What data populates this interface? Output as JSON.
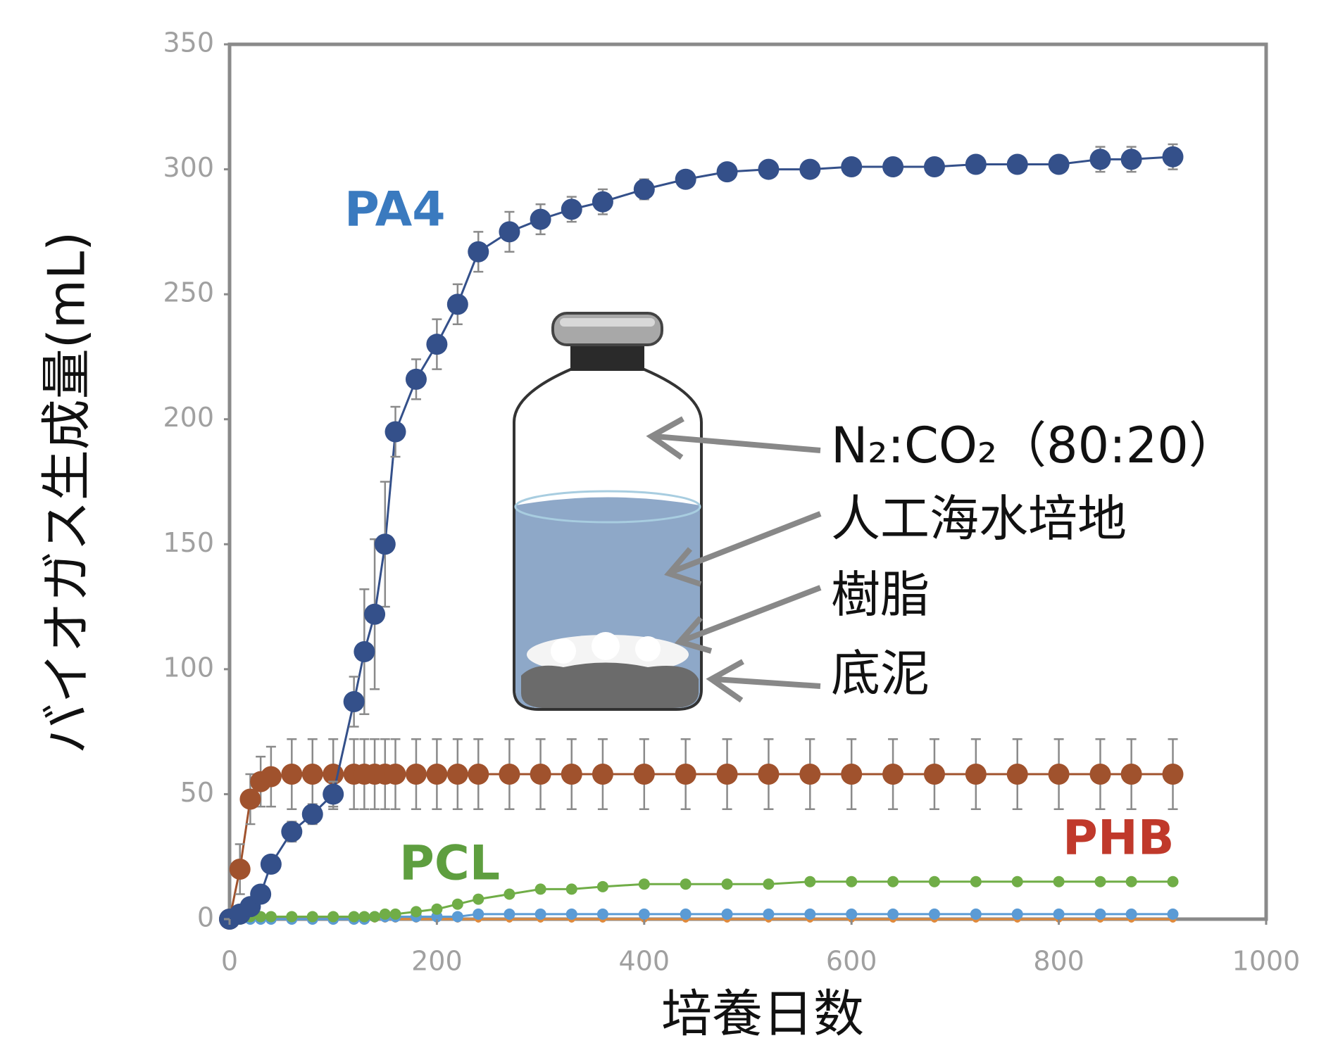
{
  "chart_data": {
    "type": "line",
    "x_label": "培養日数",
    "y_label": "バイオガス生成量(mL)",
    "xlim": [
      0,
      1000
    ],
    "xticks": [
      0,
      200,
      400,
      600,
      800,
      1000
    ],
    "ylim": [
      0,
      350
    ],
    "yticks": [
      0,
      50,
      100,
      150,
      200,
      250,
      300,
      350
    ],
    "x": [
      0,
      10,
      20,
      30,
      40,
      60,
      80,
      100,
      120,
      130,
      140,
      150,
      160,
      180,
      200,
      220,
      240,
      270,
      300,
      330,
      360,
      400,
      440,
      480,
      520,
      560,
      600,
      640,
      680,
      720,
      760,
      800,
      840,
      870,
      910
    ],
    "series": [
      {
        "color": "#e08a3c",
        "label_color": "#e08a3c",
        "values": [
          0,
          0,
          0,
          0,
          0,
          0,
          0,
          0,
          0,
          0,
          0,
          0,
          0,
          0,
          0,
          0,
          0,
          0,
          0,
          0,
          0,
          0,
          0,
          0,
          0,
          0,
          0,
          0,
          0,
          0,
          0,
          0,
          0,
          0,
          0
        ]
      },
      {
        "color": "#5b9bd5",
        "values": [
          0,
          0,
          0,
          0,
          0,
          0,
          0,
          0,
          0,
          0,
          1,
          1,
          1,
          1,
          1,
          1,
          2,
          2,
          2,
          2,
          2,
          2,
          2,
          2,
          2,
          2,
          2,
          2,
          2,
          2,
          2,
          2,
          2,
          2,
          2
        ]
      },
      {
        "name": "PCL",
        "color": "#70ad47",
        "label_color": "#5e9e3f",
        "values": [
          0,
          0,
          1,
          1,
          1,
          1,
          1,
          1,
          1,
          1,
          1,
          2,
          2,
          3,
          4,
          6,
          8,
          10,
          12,
          12,
          13,
          14,
          14,
          14,
          14,
          15,
          15,
          15,
          15,
          15,
          15,
          15,
          15,
          15,
          15
        ]
      },
      {
        "name": "PHB",
        "color": "#a0522d",
        "label_color": "#c0392b",
        "values": [
          0,
          20,
          48,
          55,
          57,
          58,
          58,
          58,
          58,
          58,
          58,
          58,
          58,
          58,
          58,
          58,
          58,
          58,
          58,
          58,
          58,
          58,
          58,
          58,
          58,
          58,
          58,
          58,
          58,
          58,
          58,
          58,
          58,
          58,
          58
        ],
        "errors": [
          0,
          10,
          10,
          10,
          12,
          14,
          14,
          14,
          14,
          14,
          14,
          14,
          14,
          14,
          14,
          14,
          14,
          14,
          14,
          14,
          14,
          14,
          14,
          14,
          14,
          14,
          14,
          14,
          14,
          14,
          14,
          14,
          14,
          14,
          14
        ]
      },
      {
        "name": "PA4",
        "color": "#34508a",
        "label_color": "#3a7abf",
        "values": [
          0,
          2,
          5,
          10,
          22,
          35,
          42,
          50,
          87,
          107,
          122,
          150,
          195,
          216,
          230,
          246,
          267,
          275,
          280,
          284,
          287,
          292,
          296,
          299,
          300,
          300,
          301,
          301,
          301,
          302,
          302,
          302,
          304,
          304,
          305
        ],
        "errors": [
          0,
          2,
          3,
          3,
          3,
          4,
          4,
          5,
          10,
          25,
          30,
          25,
          10,
          8,
          10,
          8,
          8,
          8,
          6,
          5,
          5,
          4,
          3,
          3,
          3,
          3,
          3,
          3,
          3,
          3,
          3,
          3,
          5,
          5,
          5
        ]
      }
    ],
    "inset_labels": [
      "N₂:CO₂（80:20）",
      "人工海水培地",
      "樹脂",
      "底泥"
    ]
  }
}
